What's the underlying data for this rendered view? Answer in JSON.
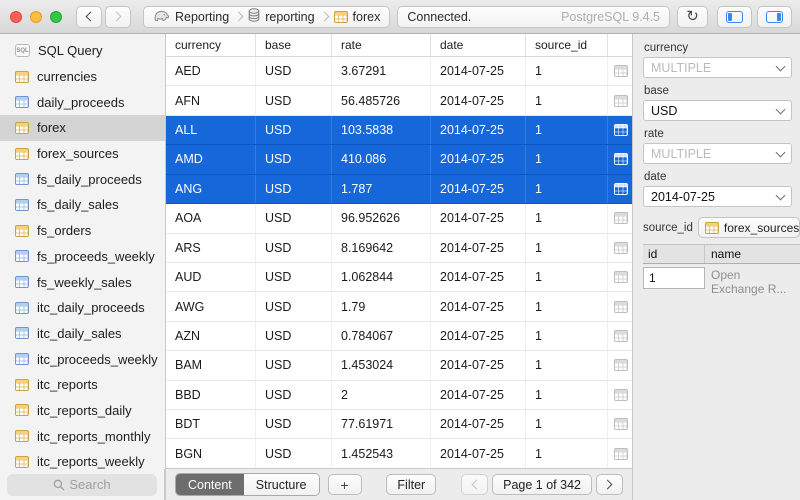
{
  "titlebar": {
    "status": "Connected.",
    "version": "PostgreSQL 9.4.5",
    "breadcrumbs": [
      {
        "label": "Reporting",
        "icon": "elephant"
      },
      {
        "label": "reporting",
        "icon": "database"
      },
      {
        "label": "forex",
        "icon": "table"
      }
    ]
  },
  "sidebar": {
    "search_placeholder": "Search",
    "items": [
      {
        "label": "SQL Query",
        "type": "sql",
        "selected": false
      },
      {
        "label": "currencies",
        "type": "table",
        "selected": false
      },
      {
        "label": "daily_proceeds",
        "type": "view",
        "selected": false
      },
      {
        "label": "forex",
        "type": "table",
        "selected": true
      },
      {
        "label": "forex_sources",
        "type": "table",
        "selected": false
      },
      {
        "label": "fs_daily_proceeds",
        "type": "view",
        "selected": false
      },
      {
        "label": "fs_daily_sales",
        "type": "view",
        "selected": false
      },
      {
        "label": "fs_orders",
        "type": "table",
        "selected": false
      },
      {
        "label": "fs_proceeds_weekly",
        "type": "view",
        "selected": false
      },
      {
        "label": "fs_weekly_sales",
        "type": "view",
        "selected": false
      },
      {
        "label": "itc_daily_proceeds",
        "type": "view",
        "selected": false
      },
      {
        "label": "itc_daily_sales",
        "type": "view",
        "selected": false
      },
      {
        "label": "itc_proceeds_weekly",
        "type": "view",
        "selected": false
      },
      {
        "label": "itc_reports",
        "type": "table",
        "selected": false
      },
      {
        "label": "itc_reports_daily",
        "type": "table",
        "selected": false
      },
      {
        "label": "itc_reports_monthly",
        "type": "table",
        "selected": false
      },
      {
        "label": "itc_reports_weekly",
        "type": "table",
        "selected": false
      }
    ]
  },
  "table": {
    "columns": [
      "currency",
      "base",
      "rate",
      "date",
      "source_id"
    ],
    "rows": [
      {
        "currency": "AED",
        "base": "USD",
        "rate": "3.67291",
        "date": "2014-07-25",
        "source_id": "1",
        "selected": false
      },
      {
        "currency": "AFN",
        "base": "USD",
        "rate": "56.485726",
        "date": "2014-07-25",
        "source_id": "1",
        "selected": false
      },
      {
        "currency": "ALL",
        "base": "USD",
        "rate": "103.5838",
        "date": "2014-07-25",
        "source_id": "1",
        "selected": true
      },
      {
        "currency": "AMD",
        "base": "USD",
        "rate": "410.086",
        "date": "2014-07-25",
        "source_id": "1",
        "selected": true
      },
      {
        "currency": "ANG",
        "base": "USD",
        "rate": "1.787",
        "date": "2014-07-25",
        "source_id": "1",
        "selected": true
      },
      {
        "currency": "AOA",
        "base": "USD",
        "rate": "96.952626",
        "date": "2014-07-25",
        "source_id": "1",
        "selected": false
      },
      {
        "currency": "ARS",
        "base": "USD",
        "rate": "8.169642",
        "date": "2014-07-25",
        "source_id": "1",
        "selected": false
      },
      {
        "currency": "AUD",
        "base": "USD",
        "rate": "1.062844",
        "date": "2014-07-25",
        "source_id": "1",
        "selected": false
      },
      {
        "currency": "AWG",
        "base": "USD",
        "rate": "1.79",
        "date": "2014-07-25",
        "source_id": "1",
        "selected": false
      },
      {
        "currency": "AZN",
        "base": "USD",
        "rate": "0.784067",
        "date": "2014-07-25",
        "source_id": "1",
        "selected": false
      },
      {
        "currency": "BAM",
        "base": "USD",
        "rate": "1.453024",
        "date": "2014-07-25",
        "source_id": "1",
        "selected": false
      },
      {
        "currency": "BBD",
        "base": "USD",
        "rate": "2",
        "date": "2014-07-25",
        "source_id": "1",
        "selected": false
      },
      {
        "currency": "BDT",
        "base": "USD",
        "rate": "77.61971",
        "date": "2014-07-25",
        "source_id": "1",
        "selected": false
      },
      {
        "currency": "BGN",
        "base": "USD",
        "rate": "1.452543",
        "date": "2014-07-25",
        "source_id": "1",
        "selected": false
      }
    ]
  },
  "bottombar": {
    "tabs": [
      {
        "label": "Content",
        "selected": true
      },
      {
        "label": "Structure",
        "selected": false
      }
    ],
    "add_label": "+",
    "filter_label": "Filter",
    "page_label": "Page 1 of 342"
  },
  "inspector": {
    "fields": [
      {
        "label": "currency",
        "value": "MULTIPLE",
        "muted": true
      },
      {
        "label": "base",
        "value": "USD",
        "muted": false
      },
      {
        "label": "rate",
        "value": "MULTIPLE",
        "muted": true
      },
      {
        "label": "date",
        "value": "2014-07-25",
        "muted": false
      }
    ],
    "foreign_key": {
      "label": "source_id",
      "button_label": "forex_sources",
      "columns": [
        "id",
        "name"
      ],
      "row": {
        "id": "1",
        "name": "Open Exchange R..."
      }
    }
  },
  "colors": {
    "selection_blue": "#1667da",
    "accent_blue": "#3f86f4",
    "table_icon_yellow": "#f5d17d",
    "view_icon_blue": "#b5cff2"
  }
}
